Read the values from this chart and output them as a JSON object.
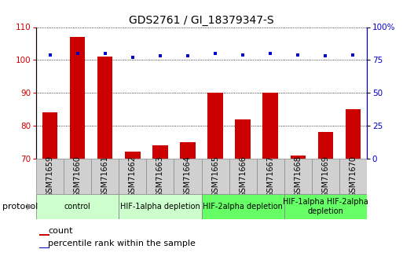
{
  "title": "GDS2761 / GI_18379347-S",
  "samples": [
    "GSM71659",
    "GSM71660",
    "GSM71661",
    "GSM71662",
    "GSM71663",
    "GSM71664",
    "GSM71665",
    "GSM71666",
    "GSM71667",
    "GSM71668",
    "GSM71669",
    "GSM71670"
  ],
  "count_values": [
    84,
    107,
    101,
    72,
    74,
    75,
    90,
    82,
    90,
    71,
    78,
    85
  ],
  "percentile_values": [
    79,
    80,
    80,
    77,
    78,
    78,
    80,
    79,
    80,
    79,
    78,
    79
  ],
  "ylim_left": [
    70,
    110
  ],
  "ylim_right": [
    0,
    100
  ],
  "yticks_left": [
    70,
    80,
    90,
    100,
    110
  ],
  "yticks_right": [
    0,
    25,
    50,
    75,
    100
  ],
  "bar_color": "#cc0000",
  "dot_color": "#0000cc",
  "grid_color": "#000000",
  "group_boundaries": [
    0,
    3,
    6,
    9,
    12
  ],
  "group_colors": [
    "#ccffcc",
    "#ccffcc",
    "#66ff66",
    "#66ff66"
  ],
  "group_labels": [
    "control",
    "HIF-1alpha depletion",
    "HIF-2alpha depletion",
    "HIF-1alpha HIF-2alpha\ndepletion"
  ],
  "legend_count_label": "count",
  "legend_pct_label": "percentile rank within the sample",
  "protocol_label": "protocol",
  "title_fontsize": 10,
  "tick_fontsize": 7,
  "axis_fontsize": 7.5,
  "protocol_fontsize": 7,
  "legend_fontsize": 8,
  "sample_box_color": "#d0d0d0",
  "sample_box_edge": "#888888"
}
